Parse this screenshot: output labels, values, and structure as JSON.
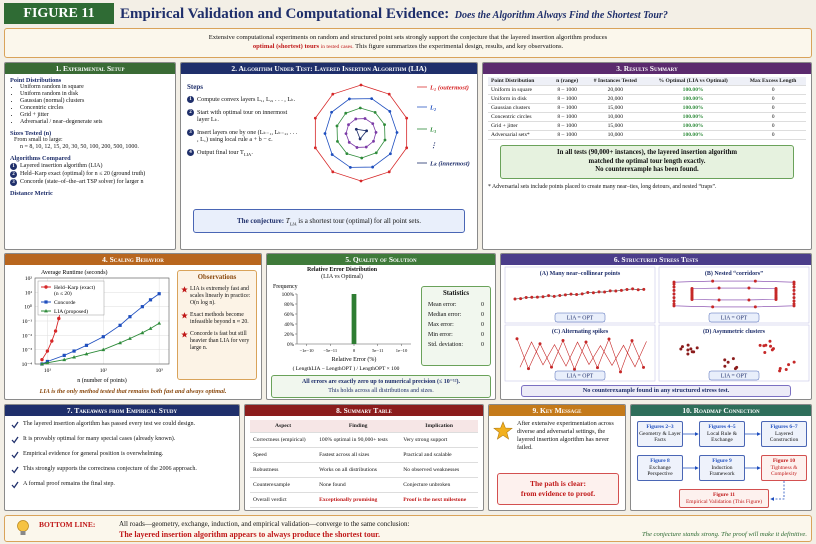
{
  "header": {
    "figure_label": "FIGURE 11",
    "title": "Empirical Validation and Computational Evidence:",
    "subtitle": "Does the Algorithm Always Find the Shortest Tour?"
  },
  "intro": {
    "line1": "Extensive computational experiments on random and structured point sets strongly support the conjecture that the layered insertion algorithm produces",
    "highlight": "optimal (shortest) tours",
    "highlight_note": "in tested cases.",
    "line2_rest": "This figure summarizes the experimental design, results, and key observations."
  },
  "setup": {
    "title": "1. Experimental Setup",
    "distributions_heading": "Point Distributions",
    "distributions": [
      "Uniform random in square",
      "Uniform random in disk",
      "Gaussian (normal) clusters",
      "Concentric circles",
      "Grid + jitter",
      "Adversarial / near–degenerate sets"
    ],
    "sizes_heading": "Sizes Tested (n)",
    "sizes_intro": "From small to large:",
    "sizes": "n = 8, 10, 12, 15, 20, 30, 50, 100, 200, 500, 1000.",
    "algorithms_heading": "Algorithms Compared",
    "algorithms": [
      {
        "n": 1,
        "text": "Layered insertion algorithm (LIA)"
      },
      {
        "n": 2,
        "text": "Held–Karp exact (optimal) for n ≤ 20 (ground truth)"
      },
      {
        "n": 3,
        "text": "Concorde (state–of–the–art TSP solver) for larger n"
      }
    ],
    "metric_heading": "Distance Metric"
  },
  "algorithm": {
    "title": "2. Algorithm Under Test: Layered Insertion Algorithm (LIA)",
    "steps_heading": "Steps",
    "steps": [
      {
        "n": 1,
        "text": "Compute convex layers L₁, L₂, . . . , Lₖ."
      },
      {
        "n": 2,
        "text": "Start with optimal tour on innermost layer Lₖ."
      },
      {
        "n": 3,
        "text": "Insert layers one by one (Lₖ₋₁, Lₖ₋₂, . . . , L₁) using local rule a + b − c."
      },
      {
        "n": 4,
        "text": "Output final tour T",
        "sub": "LIA",
        "end": "."
      }
    ],
    "layers": [
      "L₁ (outermost)",
      "L₂",
      "L₃",
      "⋮",
      "Lₖ (innermost)"
    ],
    "conjecture": {
      "lead": "The conjecture:",
      "symbol": "T",
      "sub": "LIA",
      "text": "is a shortest tour (optimal) for all point sets."
    }
  },
  "results": {
    "title": "3. Results Summary",
    "columns": [
      "Point Distribution",
      "n (range)",
      "# Instances Tested",
      "% Optimal (LIA vs Optimal)",
      "Max Excess Length"
    ],
    "rows": [
      [
        "Uniform in square",
        "8 – 1000",
        "20,000",
        "100.00%",
        "0"
      ],
      [
        "Uniform in disk",
        "8 – 1000",
        "20,000",
        "100.00%",
        "0"
      ],
      [
        "Gaussian clusters",
        "8 – 1000",
        "15,000",
        "100.00%",
        "0"
      ],
      [
        "Concentric circles",
        "8 – 1000",
        "10,000",
        "100.00%",
        "0"
      ],
      [
        "Grid + jitter",
        "8 – 1000",
        "15,000",
        "100.00%",
        "0"
      ],
      [
        "Adversarial sets*",
        "8 – 1000",
        "10,000",
        "100.00%",
        "0"
      ]
    ],
    "highlight": [
      "In all tests (90,000+ instances), the layered insertion algorithm",
      "matched the optimal tour length exactly.",
      "No counterexample has been found."
    ],
    "footnote": "* Adversarial sets include points placed to create many near–ties, long detours, and nested “traps”."
  },
  "scaling": {
    "title": "4. Scaling Behavior",
    "type": "line",
    "ylabel": "Average Runtime (seconds)",
    "xlabel": "n (number of points)",
    "xscale": "log",
    "yscale": "log",
    "grid": true,
    "legend": "upper left",
    "xlim": [
      6,
      1500
    ],
    "ylim": [
      0.0001,
      100
    ],
    "xticks": [
      {
        "value": 10,
        "label": "10¹"
      },
      {
        "value": 100,
        "label": "10²"
      },
      {
        "value": 1000,
        "label": "10³"
      }
    ],
    "yticks": [
      {
        "value": 0.0001,
        "label": "10⁻⁴"
      },
      {
        "value": 0.001,
        "label": "10⁻³"
      },
      {
        "value": 0.01,
        "label": "10⁻²"
      },
      {
        "value": 0.1,
        "label": "10⁻¹"
      },
      {
        "value": 1,
        "label": "10⁰"
      },
      {
        "value": 10,
        "label": "10¹"
      },
      {
        "value": 100,
        "label": "10²"
      }
    ],
    "series": [
      {
        "name": "Held–Karp (exact)",
        "note": "(n ≤ 20)",
        "color": "#d62728",
        "marker": "circle",
        "x": [
          8,
          10,
          12,
          14,
          16,
          18,
          20
        ],
        "values": [
          0.0002,
          0.0008,
          0.004,
          0.02,
          0.15,
          1,
          6
        ]
      },
      {
        "name": "Concorde",
        "color": "#1f4fbf",
        "marker": "square",
        "x": [
          8,
          10,
          20,
          30,
          50,
          100,
          200,
          300,
          500,
          700,
          1000
        ],
        "values": [
          0.0001,
          0.00015,
          0.0004,
          0.0008,
          0.002,
          0.008,
          0.05,
          0.2,
          1,
          3,
          8
        ]
      },
      {
        "name": "LIA (proposed)",
        "color": "#2e8b3a",
        "marker": "triangle",
        "x": [
          8,
          10,
          20,
          30,
          50,
          100,
          200,
          300,
          500,
          700,
          1000
        ],
        "values": [
          0.0001,
          0.00012,
          0.0002,
          0.0003,
          0.0005,
          0.001,
          0.003,
          0.006,
          0.015,
          0.03,
          0.07
        ]
      }
    ],
    "observations_heading": "Observations",
    "observations": [
      "LIA is extremely fast and scales linearly in practice: O(n log n).",
      "Exact methods become infeasible beyond n ≈ 20.",
      "Concorde is fast but still heavier than LIA for very large n."
    ],
    "footer": "LIA is the only method tested that remains both fast and always optimal."
  },
  "quality": {
    "title": "5. Quality of Solution",
    "type": "histogram",
    "chart_title": "Relative Error Distribution",
    "chart_subtitle": "(LIA vs Optimal)",
    "ylabel": "Frequency",
    "xlabel": "Relative Error (%)",
    "formula": "( LengthLIA − LengthOPT ) / LengthOPT × 100",
    "color": "#2e7d32",
    "bins": [
      -5e-12,
      5e-12
    ],
    "values": [
      100
    ],
    "xlim": [
      -1.2e-10,
      1.2e-10
    ],
    "xticks": [
      {
        "value": -1e-10,
        "label": "−1e−10"
      },
      {
        "value": -5e-11,
        "label": "−5e−11"
      },
      0,
      {
        "value": 5e-11,
        "label": "5e−11"
      },
      {
        "value": 1e-10,
        "label": "1e−10"
      }
    ],
    "ylim": [
      0,
      100
    ],
    "yticks": [
      {
        "value": 0,
        "label": "0%"
      },
      {
        "value": 20,
        "label": "20%"
      },
      {
        "value": 40,
        "label": "40%"
      },
      {
        "value": 60,
        "label": "60%"
      },
      {
        "value": 80,
        "label": "80%"
      },
      {
        "value": 100,
        "label": "100%"
      }
    ],
    "stats_heading": "Statistics",
    "stats": [
      {
        "label": "Mean error:",
        "value": 0
      },
      {
        "label": "Median error:",
        "value": 0
      },
      {
        "label": "Max error:",
        "value": 0
      },
      {
        "label": "Min error:",
        "value": 0
      },
      {
        "label": "Std. deviation:",
        "value": 0
      }
    ],
    "footer": [
      "All errors are exactly zero up to numerical precision (≤ 10⁻¹²).",
      "This holds across all distributions and sizes."
    ]
  },
  "stress": {
    "title": "6. Structured Stress Tests",
    "cases": [
      {
        "label": "(A) Many near–collinear points",
        "result": "LIA = OPT"
      },
      {
        "label": "(B) Nested “corridors”",
        "result": "LIA = OPT"
      },
      {
        "label": "(C) Alternating spikes",
        "result": "LIA = OPT"
      },
      {
        "label": "(D) Asymmetric clusters",
        "result": "LIA = OPT"
      }
    ],
    "footer": "No counterexample found in any structured stress test."
  },
  "takeaways": {
    "title": "7. Takeaways from Empirical Study",
    "items": [
      "The layered insertion algorithm has passed every test we could design.",
      "It is provably optimal for many special cases (already known).",
      "Empirical evidence for general position is overwhelming.",
      "This strongly supports the correctness conjecture of the 2006 approach.",
      "A formal proof remains the final step."
    ]
  },
  "summary": {
    "title": "8. Summary Table",
    "columns": [
      "Aspect",
      "Finding",
      "Implication"
    ],
    "rows": [
      [
        "Correctness (empirical)",
        "100% optimal in 90,000+ tests",
        "Very strong support"
      ],
      [
        "Speed",
        "Fastest across all sizes",
        "Practical and scalable"
      ],
      [
        "Robustness",
        "Works on all distributions",
        "No observed weaknesses"
      ],
      [
        "Counterexample",
        "None found",
        "Conjecture unbroken"
      ],
      [
        "Overall verdict",
        "Exceptionally promising",
        "Proof is the next milestone"
      ]
    ]
  },
  "key": {
    "title": "9. Key Message",
    "text": "After extensive experimentation across diverse and adversarial settings, the layered insertion algorithm has never failed.",
    "conclusion": [
      "The path is clear:",
      "from evidence to proof."
    ]
  },
  "roadmap": {
    "title": "10. Roadmap Connection",
    "nodes": [
      {
        "ref": "Figures 2–3",
        "label": "Geometry & Layer Facts"
      },
      {
        "ref": "Figures 4–5",
        "label": "Local Rule & Exchange"
      },
      {
        "ref": "Figures 6–7",
        "label": "Layered Construction"
      },
      {
        "ref": "Figure 8",
        "label": "Exchange Perspective"
      },
      {
        "ref": "Figure 9",
        "label": "Induction Framework"
      },
      {
        "ref": "Figure 10",
        "label": "Tightness & Complexity"
      },
      {
        "ref": "Figure 11",
        "label": "Empirical Validation (This Figure)"
      }
    ]
  },
  "bottom": {
    "label": "BOTTOM LINE:",
    "text": "All roads—geometry, exchange, induction, and empirical validation—converge to the same conclusion:",
    "emphasis": "The layered insertion algorithm appears to always produce the shortest tour.",
    "closing": "The conjecture stands strong. The proof will make it definitive."
  }
}
